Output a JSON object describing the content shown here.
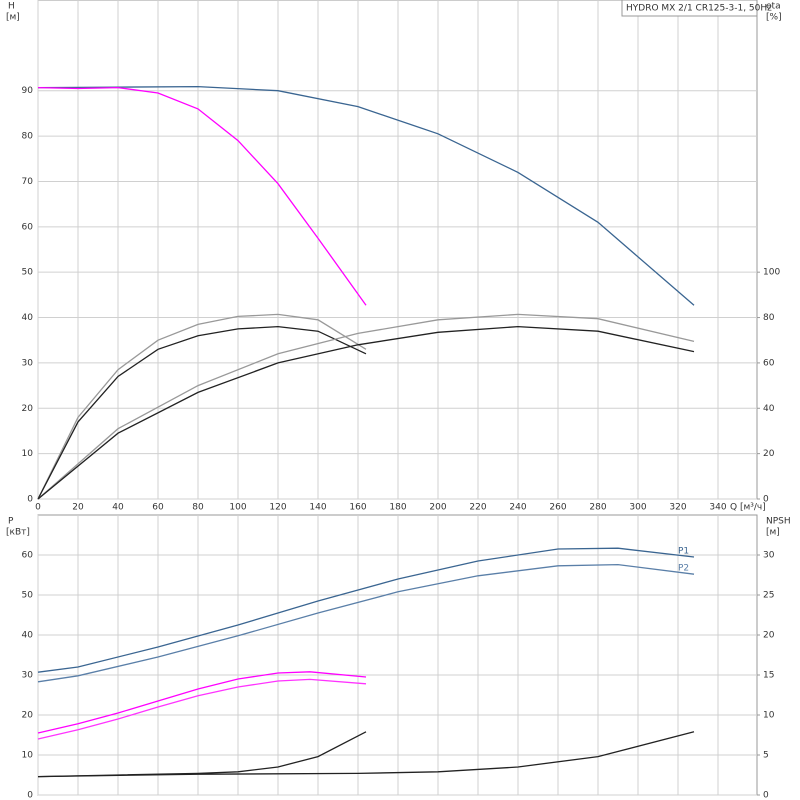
{
  "chart_data": [
    {
      "type": "line",
      "title": "HYDRO MX 2/1 CR125-3-1, 50Hz",
      "ylabel": "H",
      "yunit": "[м]",
      "y2label": "eta",
      "y2unit": "[%]",
      "xlabel": "Q [м³/ч]",
      "xlim": [
        0,
        359.5
      ],
      "xticks": [
        0,
        20,
        40,
        60,
        80,
        100,
        120,
        140,
        160,
        180,
        200,
        220,
        240,
        260,
        280,
        300,
        320,
        340
      ],
      "ylim": [
        0,
        110
      ],
      "yticks": [
        0,
        10,
        20,
        30,
        40,
        50,
        60,
        70,
        80,
        90
      ],
      "y2lim": [
        0,
        220
      ],
      "y2ticks": [
        0,
        20,
        40,
        60,
        80,
        100
      ],
      "grid": true,
      "xtick_labels": true,
      "series": [
        {
          "color": "#3a6591",
          "x": [
            0,
            40,
            80,
            120,
            160,
            200,
            240,
            280,
            328
          ],
          "values": [
            90.7,
            90.8,
            90.9,
            90.0,
            86.5,
            80.5,
            72,
            61,
            42.7
          ]
        },
        {
          "color": "#ff00ff",
          "x": [
            0,
            20,
            40,
            60,
            80,
            100,
            120,
            140,
            164
          ],
          "values": [
            90.7,
            90.5,
            90.7,
            89.5,
            86,
            79,
            69.5,
            57.5,
            42.7
          ]
        },
        {
          "color": "#999999",
          "axis": "y2",
          "x": [
            0,
            20,
            40,
            60,
            80,
            100,
            120,
            140,
            164
          ],
          "values": [
            0,
            36,
            57,
            70,
            77,
            80.5,
            81.4,
            79,
            66
          ]
        },
        {
          "color": "#222222",
          "axis": "y2",
          "x": [
            0,
            20,
            40,
            60,
            80,
            100,
            120,
            140,
            164
          ],
          "values": [
            0,
            34,
            54,
            66,
            72,
            75,
            76,
            74,
            64
          ]
        },
        {
          "color": "#999999",
          "axis": "y2",
          "x": [
            0,
            40,
            80,
            120,
            160,
            200,
            240,
            280,
            328
          ],
          "values": [
            0,
            31,
            50,
            64,
            73,
            79,
            81.4,
            79.5,
            69.5
          ]
        },
        {
          "color": "#222222",
          "axis": "y2",
          "x": [
            0,
            40,
            80,
            120,
            160,
            200,
            240,
            280,
            328
          ],
          "values": [
            0,
            29,
            47,
            60,
            68,
            73.5,
            76,
            74,
            65
          ]
        }
      ]
    },
    {
      "type": "line",
      "ylabel": "P",
      "yunit": "[кВт]",
      "y2label": "NPSH",
      "y2unit": "[м]",
      "xlim": [
        0,
        359.5
      ],
      "xticks": [
        0,
        20,
        40,
        60,
        80,
        100,
        120,
        140,
        160,
        180,
        200,
        220,
        240,
        260,
        280,
        300,
        320,
        340
      ],
      "ylim": [
        0,
        70
      ],
      "yticks": [
        0,
        10,
        20,
        30,
        40,
        50,
        60
      ],
      "y2lim": [
        0,
        35
      ],
      "y2ticks": [
        0,
        5,
        10,
        15,
        20,
        25,
        30
      ],
      "grid": true,
      "xtick_labels": false,
      "series": [
        {
          "name": "P1",
          "color": "#3a6591",
          "x": [
            0,
            20,
            60,
            100,
            140,
            180,
            220,
            260,
            290,
            328
          ],
          "values": [
            30.7,
            32,
            37,
            42.5,
            48.5,
            54,
            58.5,
            61.5,
            61.7,
            59.5
          ]
        },
        {
          "name": "P2",
          "color": "#5a7fa8",
          "x": [
            0,
            20,
            60,
            100,
            140,
            180,
            220,
            260,
            290,
            328
          ],
          "values": [
            28.3,
            29.8,
            34.5,
            39.8,
            45.5,
            50.8,
            54.8,
            57.3,
            57.6,
            55.2
          ]
        },
        {
          "color": "#ff00ff",
          "x": [
            0,
            20,
            40,
            60,
            80,
            100,
            120,
            136,
            164
          ],
          "values": [
            15.5,
            17.8,
            20.5,
            23.5,
            26.5,
            29,
            30.5,
            30.8,
            29.5
          ]
        },
        {
          "color": "#ff33ff",
          "x": [
            0,
            20,
            40,
            60,
            80,
            100,
            120,
            136,
            164
          ],
          "values": [
            14,
            16.3,
            19,
            22,
            24.8,
            27,
            28.5,
            28.9,
            27.8
          ]
        },
        {
          "color": "#222222",
          "axis": "y2",
          "x": [
            0,
            40,
            80,
            100,
            120,
            140,
            164
          ],
          "values": [
            2.3,
            2.5,
            2.7,
            2.9,
            3.5,
            4.8,
            7.9
          ]
        },
        {
          "color": "#222222",
          "axis": "y2",
          "x": [
            0,
            80,
            160,
            200,
            240,
            280,
            328
          ],
          "values": [
            2.3,
            2.6,
            2.7,
            2.9,
            3.5,
            4.8,
            7.9
          ]
        }
      ]
    }
  ]
}
